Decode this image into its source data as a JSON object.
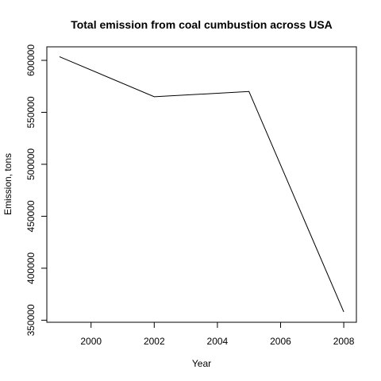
{
  "chart_data": {
    "type": "line",
    "title": "Total emission from coal cumbustion across USA",
    "xlabel": "Year",
    "ylabel": "Emission, tons",
    "x": [
      1999,
      2002,
      2005,
      2008
    ],
    "series": [
      {
        "values": [
          603500,
          565000,
          570000,
          358000
        ]
      }
    ],
    "xlim": [
      1998.6,
      2008.4
    ],
    "ylim": [
      348000,
      613000
    ],
    "xticks": [
      "2000",
      "2002",
      "2004",
      "2006",
      "2008"
    ],
    "yticks": [
      "350000",
      "400000",
      "450000",
      "500000",
      "550000",
      "600000"
    ],
    "grid": false,
    "line_color": "#000000"
  }
}
